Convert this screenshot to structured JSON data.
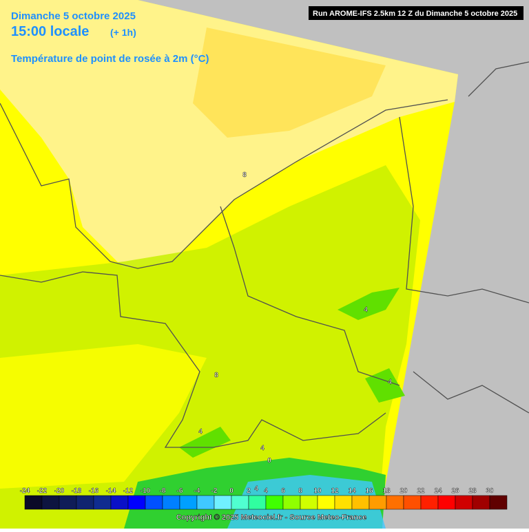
{
  "header": {
    "date": "Dimanche 5 octobre 2025",
    "time": "15:00 locale",
    "offset": "(+ 1h)",
    "variable": "Température de point de rosée à 2m (°C)",
    "run": "Run AROME-IFS 2.5km 12 Z du Dimanche 5 octobre 2025"
  },
  "contour_labels": [
    8,
    4,
    4,
    8,
    4,
    4,
    0,
    4
  ],
  "legend": {
    "values": [
      -24,
      -22,
      -20,
      -18,
      -16,
      -14,
      -12,
      -10,
      -8,
      -6,
      -4,
      -2,
      0,
      2,
      4,
      6,
      8,
      10,
      12,
      14,
      16,
      18,
      20,
      22,
      24,
      26,
      28,
      30
    ],
    "colors": [
      "#0a0a28",
      "#0d1440",
      "#0f1c58",
      "#102470",
      "#102c90",
      "#0a10c8",
      "#0000ff",
      "#0050ff",
      "#0080ff",
      "#00a0ff",
      "#40c8ff",
      "#70f0ff",
      "#50ffd0",
      "#30ffa0",
      "#40ff00",
      "#90ff00",
      "#d0ff00",
      "#ffff00",
      "#ffe000",
      "#ffc000",
      "#ff9c00",
      "#ff7000",
      "#ff5000",
      "#ff2000",
      "#ff0000",
      "#d00000",
      "#a00000",
      "#600000"
    ]
  },
  "copyright": "Copyright © 2025 Meteociel.fr - Source Meteo-France"
}
